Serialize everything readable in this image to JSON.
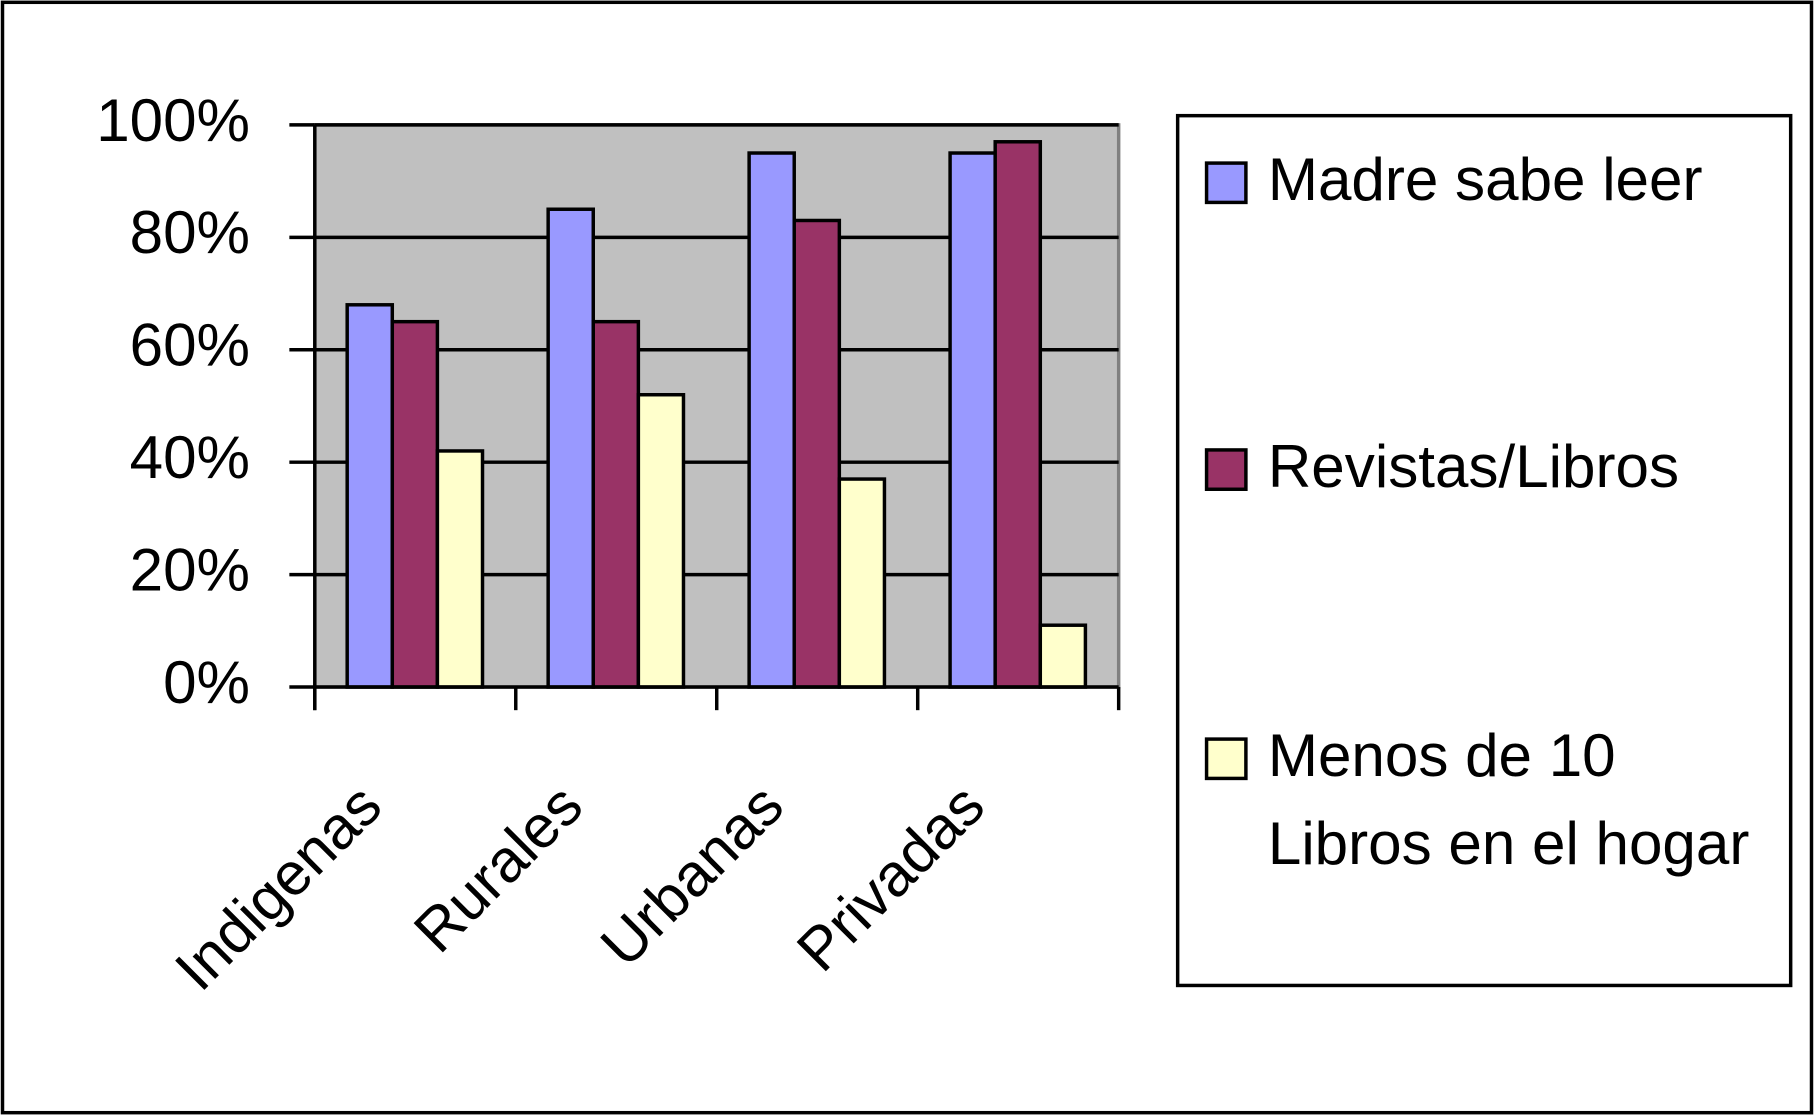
{
  "chart_data": {
    "type": "bar",
    "categories": [
      "Indigenas",
      "Rurales",
      "Urbanas",
      "Privadas"
    ],
    "series": [
      {
        "name": "Madre sabe leer",
        "color": "#9999ff",
        "values": [
          68,
          85,
          95,
          95
        ]
      },
      {
        "name": "Revistas/Libros",
        "color": "#993366",
        "values": [
          65,
          65,
          83,
          97
        ]
      },
      {
        "name": "Menos de 10 Libros en el hogar",
        "color": "#ffffcc",
        "values": [
          42,
          52,
          37,
          11
        ]
      }
    ],
    "ylim": [
      0,
      100
    ],
    "yticks": [
      {
        "value": 0,
        "label": "0%"
      },
      {
        "value": 20,
        "label": "20%"
      },
      {
        "value": 40,
        "label": "40%"
      },
      {
        "value": 60,
        "label": "60%"
      },
      {
        "value": 80,
        "label": "80%"
      },
      {
        "value": 100,
        "label": "100%"
      }
    ],
    "grid": true,
    "legend": "right",
    "plot_background": "#c0c0c0"
  }
}
